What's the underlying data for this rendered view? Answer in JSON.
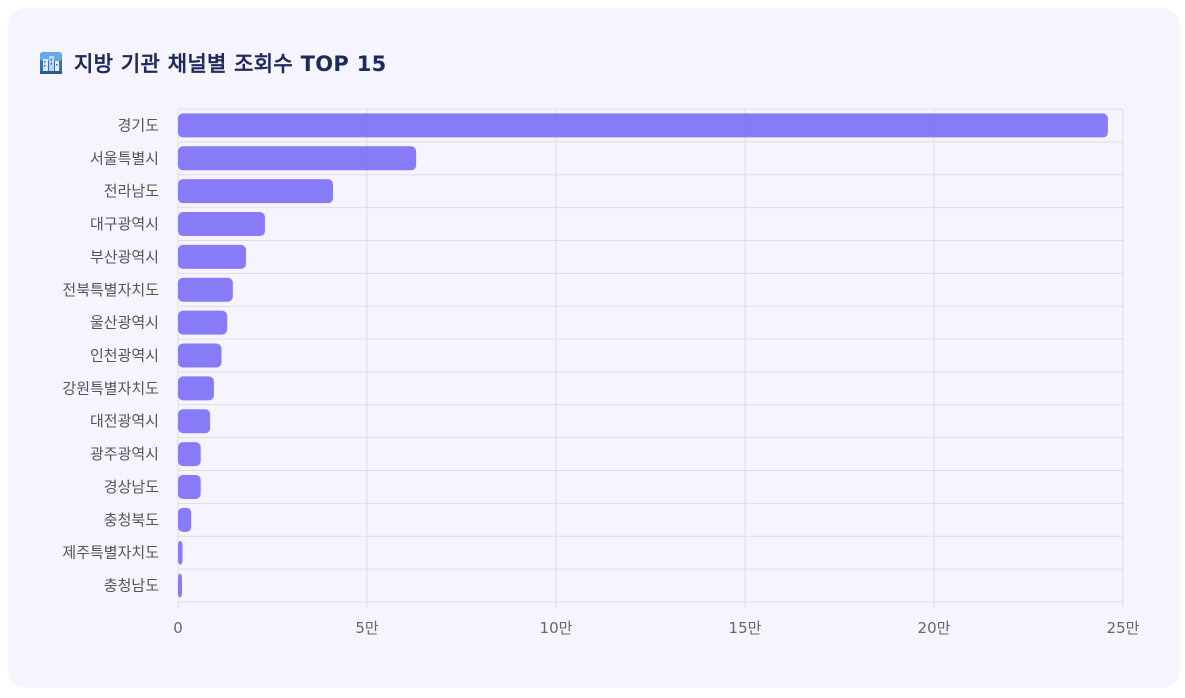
{
  "header": {
    "icon": "city-icon",
    "title": "지방 기관 채널별 조회수 TOP 15"
  },
  "colors": {
    "bar": "#7b6ef6",
    "card_background": "#f6f4ff",
    "grid": "#dddde6",
    "title": "#1f2a5c"
  },
  "chart_data": {
    "type": "bar",
    "orientation": "horizontal",
    "title": "지방 기관 채널별 조회수 TOP 15",
    "xlabel": "",
    "ylabel": "",
    "categories": [
      "경기도",
      "서울특별시",
      "전라남도",
      "대구광역시",
      "부산광역시",
      "전북특별자치도",
      "울산광역시",
      "인천광역시",
      "강원특별자치도",
      "대전광역시",
      "광주광역시",
      "경상남도",
      "충청북도",
      "제주특별자치도",
      "충청남도"
    ],
    "values": [
      246000,
      63000,
      41000,
      23000,
      18000,
      14500,
      13000,
      11500,
      9500,
      8500,
      6000,
      6000,
      3500,
      1200,
      900
    ],
    "xlim": [
      0,
      250000
    ],
    "x_ticks": [
      0,
      50000,
      100000,
      150000,
      200000,
      250000
    ],
    "x_tick_labels": [
      "0",
      "5만",
      "10만",
      "15만",
      "20만",
      "25만"
    ],
    "grid": true,
    "legend": "none"
  }
}
